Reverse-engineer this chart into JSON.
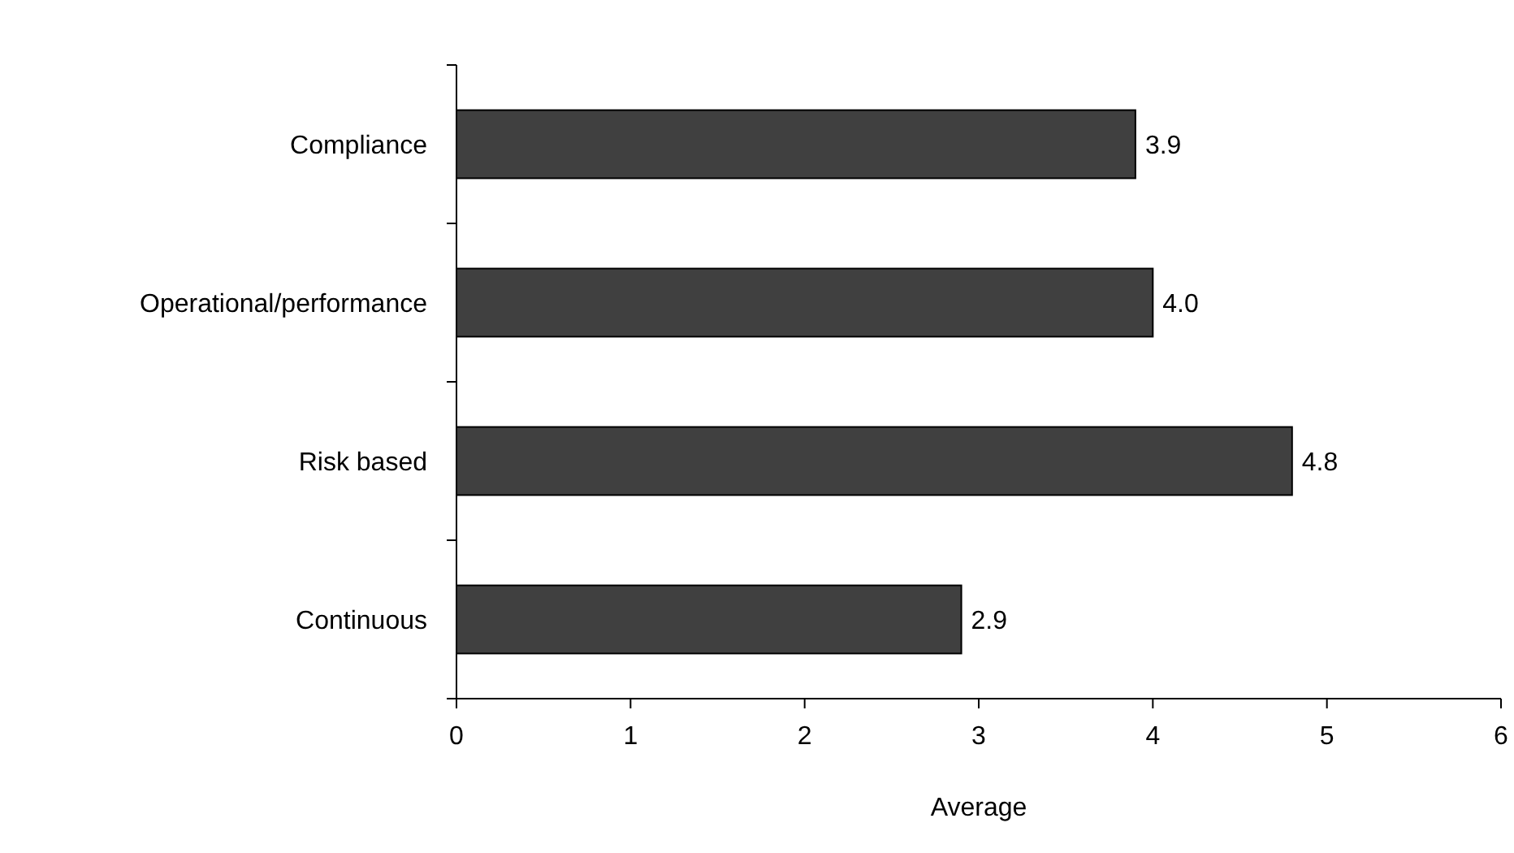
{
  "chart_data": {
    "type": "bar",
    "orientation": "horizontal",
    "xlabel": "Average",
    "categories": [
      "Compliance",
      "Operational/performance",
      "Risk based",
      "Continuous"
    ],
    "values": [
      3.9,
      4.0,
      4.8,
      2.9
    ],
    "value_labels": [
      "3.9",
      "4.0",
      "4.8",
      "2.9"
    ],
    "color": "#404040",
    "xlim": [
      0,
      6
    ],
    "xticks": [
      0,
      1,
      2,
      3,
      4,
      5,
      6
    ],
    "grid": false
  }
}
